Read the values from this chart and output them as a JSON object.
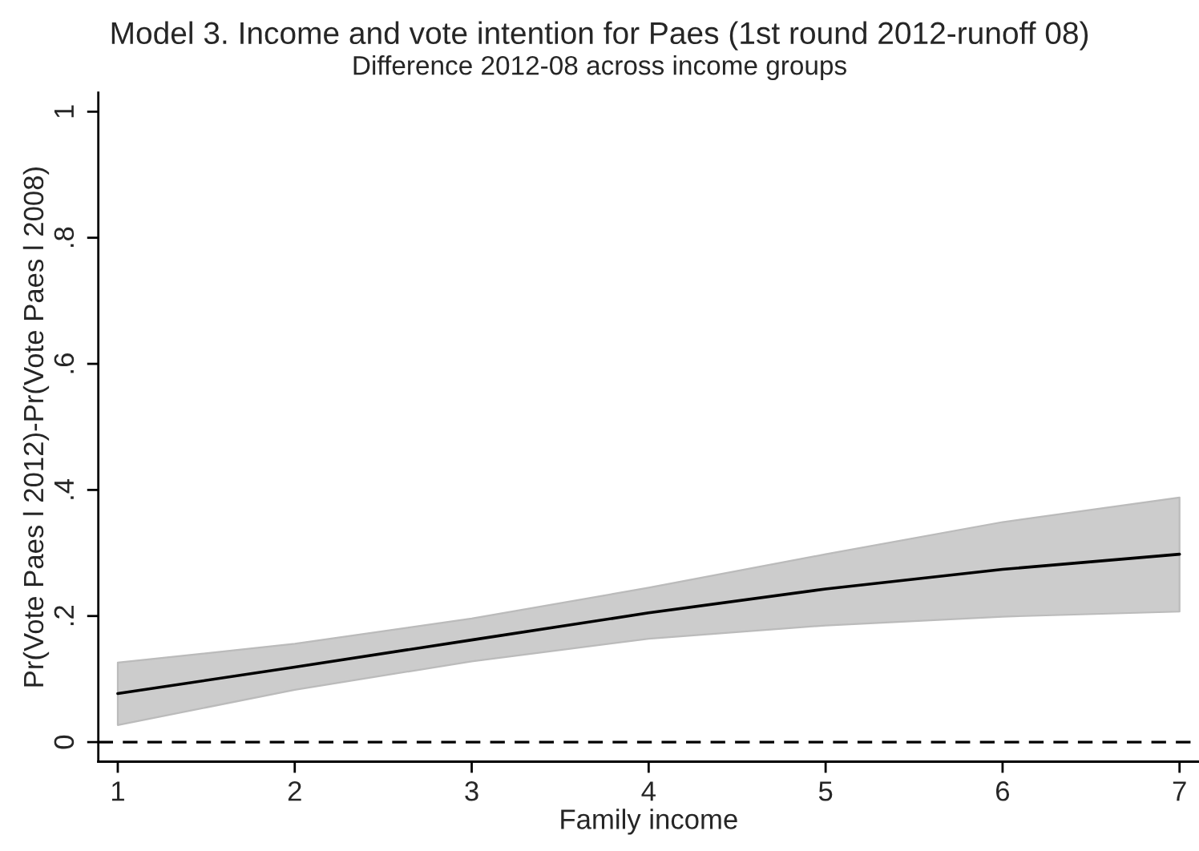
{
  "chart_data": {
    "type": "line",
    "title": "Model 3. Income and vote intention for Paes (1st round 2012-runoff 08)",
    "subtitle": "Difference 2012-08 across income groups",
    "xlabel": "Family income",
    "ylabel": "Pr(Vote Paes l 2012)-Pr(Vote Paes l 2008)",
    "x": [
      1,
      2,
      3,
      4,
      5,
      6,
      7
    ],
    "series": [
      {
        "color": "#000000",
        "values": [
          0.077,
          0.119,
          0.162,
          0.205,
          0.243,
          0.274,
          0.298
        ],
        "lower": [
          0.027,
          0.083,
          0.128,
          0.164,
          0.185,
          0.199,
          0.207
        ],
        "upper": [
          0.126,
          0.156,
          0.196,
          0.245,
          0.298,
          0.349,
          0.388
        ]
      }
    ],
    "xlim": [
      0.89,
      7.11
    ],
    "ylim": [
      -0.031,
      1.03
    ],
    "xticks": [
      1,
      2,
      3,
      4,
      5,
      6,
      7
    ],
    "yticks": [
      {
        "value": 0,
        "label": "0"
      },
      {
        "value": 0.2,
        "label": ".2"
      },
      {
        "value": 0.4,
        "label": ".4"
      },
      {
        "value": 0.6,
        "label": ".6"
      },
      {
        "value": 0.8,
        "label": ".8"
      },
      {
        "value": 1,
        "label": "1"
      }
    ],
    "ref_lines": [
      {
        "axis": "y",
        "value": 0,
        "color": "#000000",
        "line_style": "dashed"
      }
    ],
    "grid": false,
    "marker": "none",
    "line_style": "solid"
  }
}
